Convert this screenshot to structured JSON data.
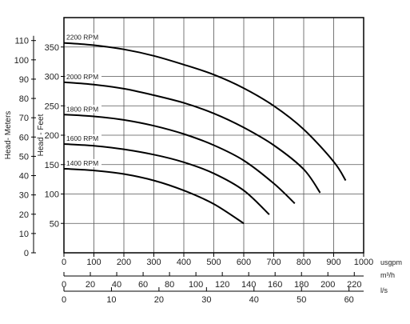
{
  "chart_data": {
    "type": "line",
    "title": "",
    "grid": true,
    "x_axes": [
      {
        "unit": "usgpm",
        "range": [
          0,
          1000
        ],
        "ticks": [
          0,
          100,
          200,
          300,
          400,
          500,
          600,
          700,
          800,
          900,
          1000
        ],
        "labels": [
          "0",
          "100",
          "200",
          "300",
          "400",
          "500",
          "600",
          "700",
          "800",
          "900",
          "1000"
        ]
      },
      {
        "unit": "m³/h",
        "range": [
          0,
          227.1
        ],
        "ticks": [
          0,
          20,
          40,
          60,
          80,
          100,
          120,
          140,
          160,
          180,
          200,
          220
        ],
        "labels": [
          "0",
          "20",
          "40",
          "60",
          "80",
          "100",
          "120",
          "140",
          "160",
          "180",
          "200",
          "220"
        ]
      },
      {
        "unit": "l/s",
        "range": [
          0,
          63.08
        ],
        "ticks": [
          0,
          10,
          20,
          30,
          40,
          50,
          60
        ],
        "labels": [
          "0",
          "10",
          "20",
          "30",
          "40",
          "50",
          "60"
        ]
      }
    ],
    "y_axes": [
      {
        "label": "Head- Meters",
        "range": [
          0,
          121.9
        ],
        "ticks": [
          0,
          10,
          20,
          30,
          40,
          50,
          60,
          70,
          80,
          90,
          100,
          110
        ],
        "labels": [
          "0",
          "10",
          "20",
          "30",
          "40",
          "50",
          "60",
          "70",
          "80",
          "90",
          "100",
          "110"
        ]
      },
      {
        "label": "Head - Feet",
        "range": [
          0,
          400
        ],
        "ticks": [
          50,
          100,
          150,
          200,
          250,
          300,
          350
        ],
        "labels": [
          "50",
          "100",
          "150",
          "200",
          "250",
          "300",
          "350"
        ]
      }
    ],
    "series": [
      {
        "name": "2200 RPM",
        "x": [
          0,
          100,
          200,
          300,
          400,
          500,
          600,
          700,
          800,
          900,
          940
        ],
        "y": [
          357,
          353,
          346,
          335,
          320,
          303,
          280,
          250,
          210,
          155,
          123
        ]
      },
      {
        "name": "2000 RPM",
        "x": [
          0,
          100,
          200,
          300,
          400,
          500,
          600,
          700,
          800,
          855
        ],
        "y": [
          290,
          286,
          279,
          268,
          255,
          237,
          213,
          183,
          142,
          102
        ]
      },
      {
        "name": "1800 RPM",
        "x": [
          0,
          100,
          200,
          300,
          400,
          500,
          600,
          700,
          770
        ],
        "y": [
          235,
          232,
          226,
          216,
          202,
          183,
          157,
          118,
          84
        ]
      },
      {
        "name": "1600 RPM",
        "x": [
          0,
          100,
          200,
          300,
          400,
          500,
          600,
          685
        ],
        "y": [
          185,
          182,
          176,
          167,
          154,
          135,
          106,
          65
        ]
      },
      {
        "name": "1400 RPM",
        "x": [
          0,
          100,
          200,
          300,
          400,
          500,
          600
        ],
        "y": [
          143,
          140,
          134,
          123,
          106,
          83,
          50
        ]
      }
    ]
  }
}
